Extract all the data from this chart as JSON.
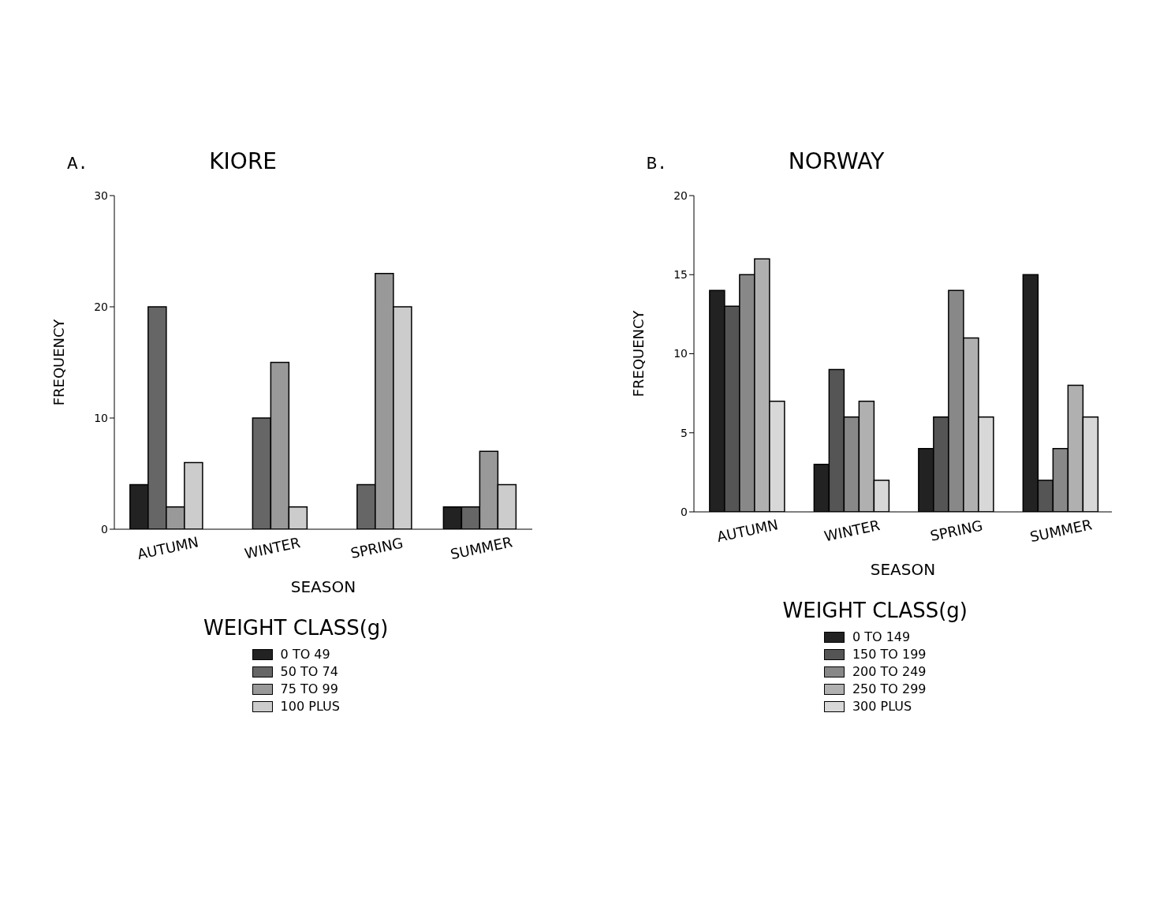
{
  "chart_data": [
    {
      "type": "bar",
      "title": "KIORE",
      "annotations": [
        "A."
      ],
      "xlabel": "SEASON",
      "ylabel": "FREQUENCY",
      "legend_title": "WEIGHT CLASS(g)",
      "legend": "bottom",
      "categories": [
        "AUTUMN",
        "WINTER",
        "SPRING",
        "SUMMER"
      ],
      "ylim": [
        0,
        30
      ],
      "yticks": [
        0,
        10,
        20,
        30
      ],
      "series": [
        {
          "name": "0 TO 49",
          "color": "#222222",
          "values": [
            4,
            0,
            0,
            2
          ]
        },
        {
          "name": "50 TO 74",
          "color": "#666666",
          "values": [
            20,
            10,
            4,
            2
          ]
        },
        {
          "name": "75 TO 99",
          "color": "#999999",
          "values": [
            2,
            15,
            23,
            7
          ]
        },
        {
          "name": "100 PLUS",
          "color": "#cccccc",
          "values": [
            6,
            2,
            20,
            4
          ]
        }
      ]
    },
    {
      "type": "bar",
      "title": "NORWAY",
      "annotations": [
        "B."
      ],
      "xlabel": "SEASON",
      "ylabel": "FREQUENCY",
      "legend_title": "WEIGHT CLASS(g)",
      "legend": "bottom",
      "categories": [
        "AUTUMN",
        "WINTER",
        "SPRING",
        "SUMMER"
      ],
      "ylim": [
        0,
        20
      ],
      "yticks": [
        0,
        5,
        10,
        15,
        20
      ],
      "series": [
        {
          "name": "0 TO 149",
          "color": "#222222",
          "values": [
            14,
            3,
            4,
            15
          ]
        },
        {
          "name": "150 TO 199",
          "color": "#555555",
          "values": [
            13,
            9,
            6,
            2
          ]
        },
        {
          "name": "200 TO 249",
          "color": "#888888",
          "values": [
            15,
            6,
            14,
            4
          ]
        },
        {
          "name": "250 TO 299",
          "color": "#b0b0b0",
          "values": [
            16,
            7,
            11,
            8
          ]
        },
        {
          "name": "300 PLUS",
          "color": "#d8d8d8",
          "values": [
            7,
            2,
            6,
            6
          ]
        }
      ]
    }
  ]
}
